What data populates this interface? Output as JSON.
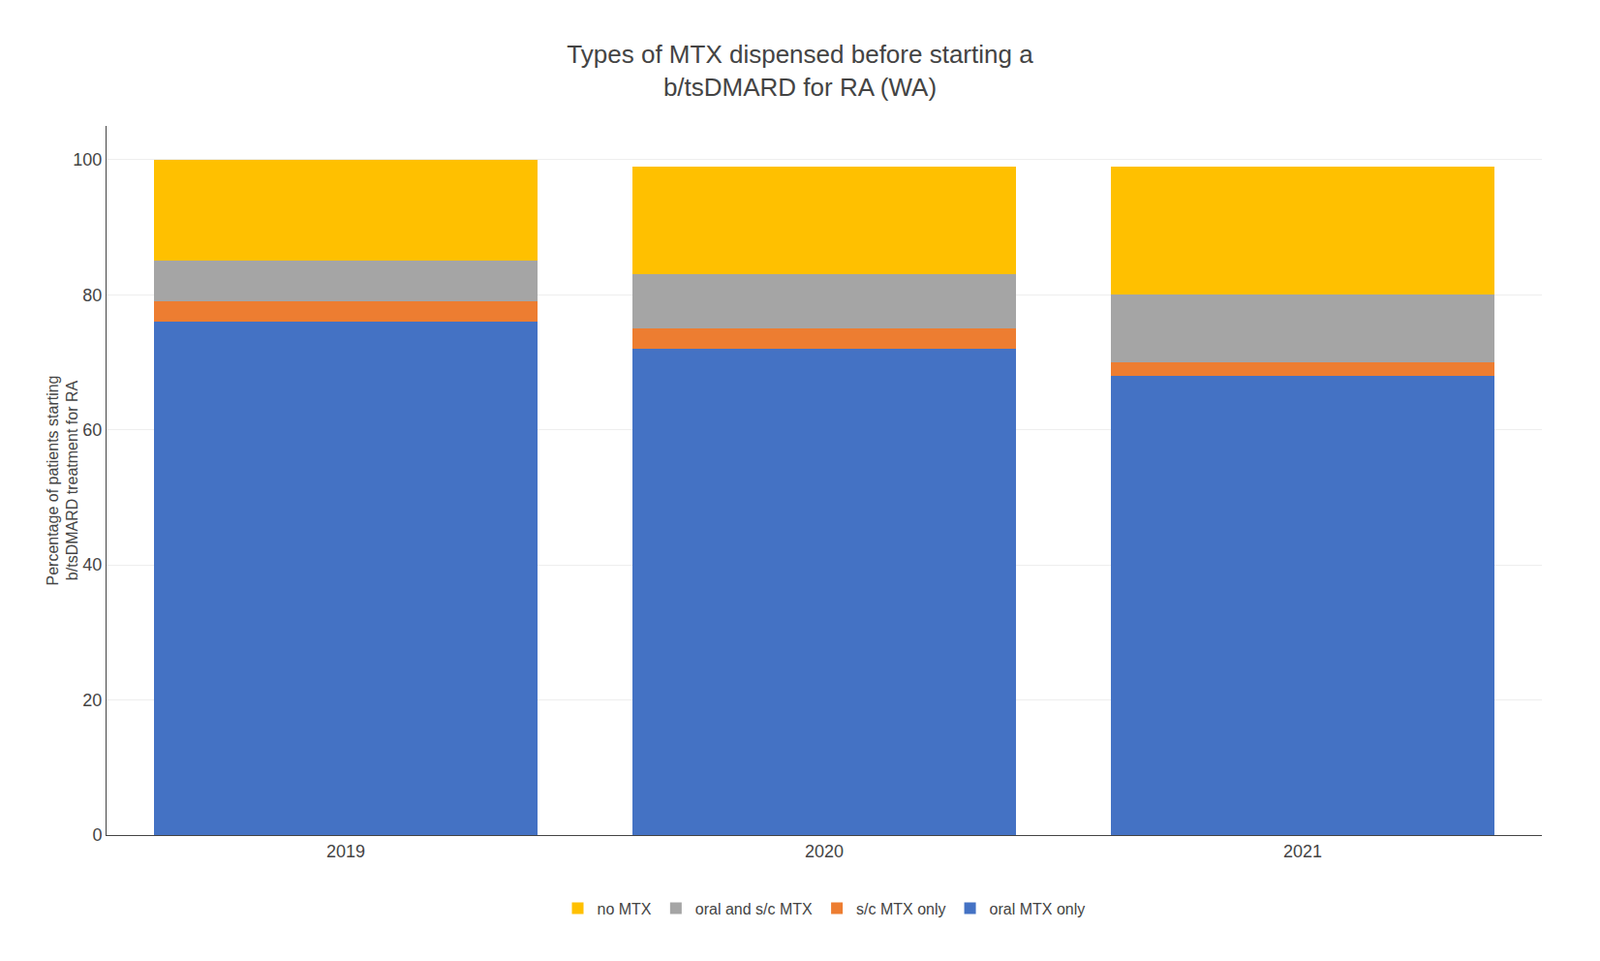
{
  "chart_data": {
    "type": "bar",
    "title": "Types of MTX dispensed before starting a\nb/tsDMARD for RA (WA)",
    "ylabel": "Percentage of patients starting\nb/tsDMARD treatment for RA",
    "categories": [
      "2019",
      "2020",
      "2021"
    ],
    "series": [
      {
        "name": "oral MTX only",
        "color": "#4472C4",
        "values": [
          76,
          72,
          68
        ]
      },
      {
        "name": "s/c MTX only",
        "color": "#ED7D31",
        "values": [
          3,
          3,
          2
        ]
      },
      {
        "name": "oral and s/c MTX",
        "color": "#A5A5A5",
        "values": [
          6,
          8,
          10
        ]
      },
      {
        "name": "no MTX",
        "color": "#FFC000",
        "values": [
          15,
          16,
          19
        ]
      }
    ],
    "stacked": true,
    "ylim": [
      0,
      105
    ],
    "yticks": [
      0,
      20,
      40,
      60,
      80,
      100
    ],
    "grid": true,
    "legend": "bottom"
  }
}
